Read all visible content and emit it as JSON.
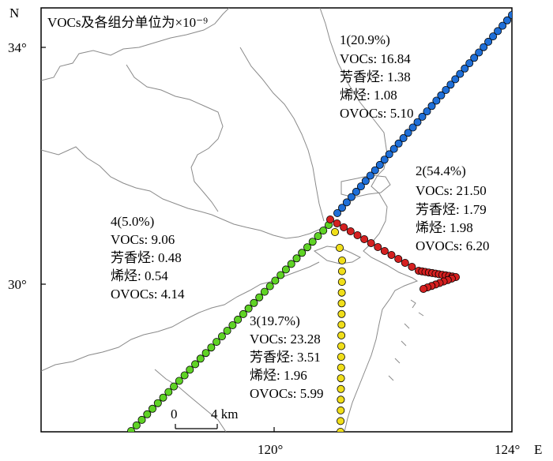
{
  "map": {
    "note": "VOCs及各组分单位为×10⁻⁹",
    "north_label": "N",
    "east_label": "E",
    "lat_ticks": [
      "34°",
      "30°"
    ],
    "lon_ticks": [
      "120°",
      "124°"
    ],
    "scale_bar": {
      "start_label": "0",
      "end_label": "4 km"
    }
  },
  "clusters": [
    {
      "id": "1",
      "header": "1(20.9%)",
      "color": "#1f6fd8",
      "lines": [
        "VOCs: 16.84",
        "芳香烃: 1.38",
        "烯烃: 1.08",
        "OVOCs: 5.10"
      ]
    },
    {
      "id": "2",
      "header": "2(54.4%)",
      "color": "#d42020",
      "lines": [
        "VOCs: 21.50",
        "芳香烃: 1.79",
        "烯烃: 1.98",
        "OVOCs: 6.20"
      ]
    },
    {
      "id": "3",
      "header": "3(19.7%)",
      "color": "#f0de1a",
      "lines": [
        "VOCs: 23.28",
        "芳香烃: 3.51",
        "烯烃: 1.96",
        "OVOCs: 5.99"
      ]
    },
    {
      "id": "4",
      "header": "4(5.0%)",
      "color": "#5fd325",
      "lines": [
        "VOCs: 9.06",
        "芳香烃: 0.48",
        "烯烃: 0.54",
        "OVOCs: 4.14"
      ]
    }
  ]
}
